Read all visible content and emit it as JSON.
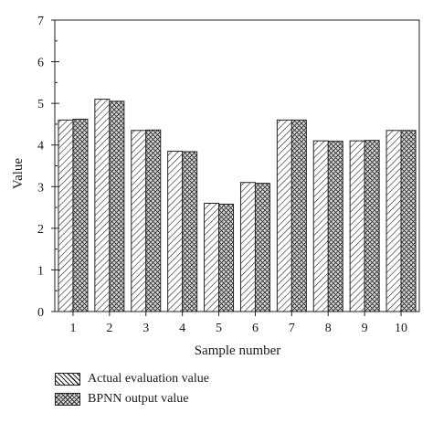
{
  "chart_data": {
    "type": "bar",
    "categories": [
      "1",
      "2",
      "3",
      "4",
      "5",
      "6",
      "7",
      "8",
      "9",
      "10"
    ],
    "series": [
      {
        "name": "Actual evaluation value",
        "values": [
          4.6,
          5.1,
          4.35,
          3.85,
          2.6,
          3.1,
          4.6,
          4.1,
          4.1,
          4.35
        ],
        "pattern": "diagonal-hatch"
      },
      {
        "name": "BPNN output value",
        "values": [
          4.62,
          5.05,
          4.36,
          3.84,
          2.58,
          3.08,
          4.6,
          4.09,
          4.11,
          4.35
        ],
        "pattern": "crosshatch"
      }
    ],
    "xlabel": "Sample number",
    "ylabel": "Value",
    "ylim": [
      0,
      7
    ],
    "yticks": [
      "0",
      "1",
      "2",
      "3",
      "4",
      "5",
      "6",
      "7"
    ],
    "grid": false,
    "legend_position": "bottom-left"
  }
}
